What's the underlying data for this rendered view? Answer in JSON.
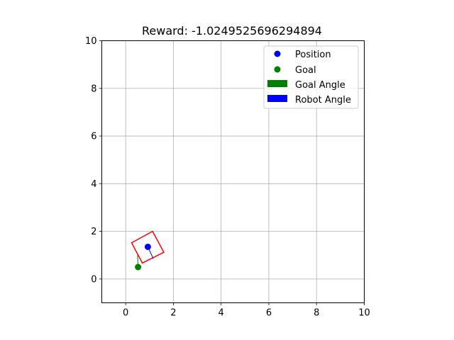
{
  "chart_data": {
    "type": "scatter",
    "title": "Reward: -1.0249525696294894",
    "xlabel": "",
    "ylabel": "",
    "xlim": [
      -1,
      10
    ],
    "ylim": [
      -1,
      10
    ],
    "xticks": [
      0,
      2,
      4,
      6,
      8,
      10
    ],
    "yticks": [
      0,
      2,
      4,
      6,
      8,
      10
    ],
    "xtick_labels": [
      "0",
      "2",
      "4",
      "6",
      "8",
      "10"
    ],
    "ytick_labels": [
      "0",
      "2",
      "4",
      "6",
      "8",
      "10"
    ],
    "grid": true,
    "legend_position": "top-right",
    "legend": [
      {
        "label": "Position",
        "marker": "circle",
        "color": "#0000ff"
      },
      {
        "label": "Goal",
        "marker": "circle",
        "color": "#008000"
      },
      {
        "label": "Goal Angle",
        "marker": "patch",
        "color": "#008000"
      },
      {
        "label": "Robot Angle",
        "marker": "patch",
        "color": "#0000ff"
      }
    ],
    "position": {
      "x": 0.93,
      "y": 1.35,
      "color": "#0000ff"
    },
    "goal": {
      "x": 0.52,
      "y": 0.5,
      "color": "#008000"
    },
    "robot_angle_arrow": {
      "from": [
        0.93,
        1.35
      ],
      "to": [
        1.16,
        0.85
      ],
      "color": "#0000ff"
    },
    "goal_angle_arrow": {
      "from": [
        0.52,
        0.5
      ],
      "to": [
        0.5,
        1.0
      ],
      "color": "#008000"
    },
    "robot_box": {
      "corners": [
        [
          0.25,
          1.52
        ],
        [
          1.13,
          2.0
        ],
        [
          1.6,
          1.12
        ],
        [
          0.7,
          0.67
        ]
      ],
      "color": "#ff0000"
    }
  }
}
